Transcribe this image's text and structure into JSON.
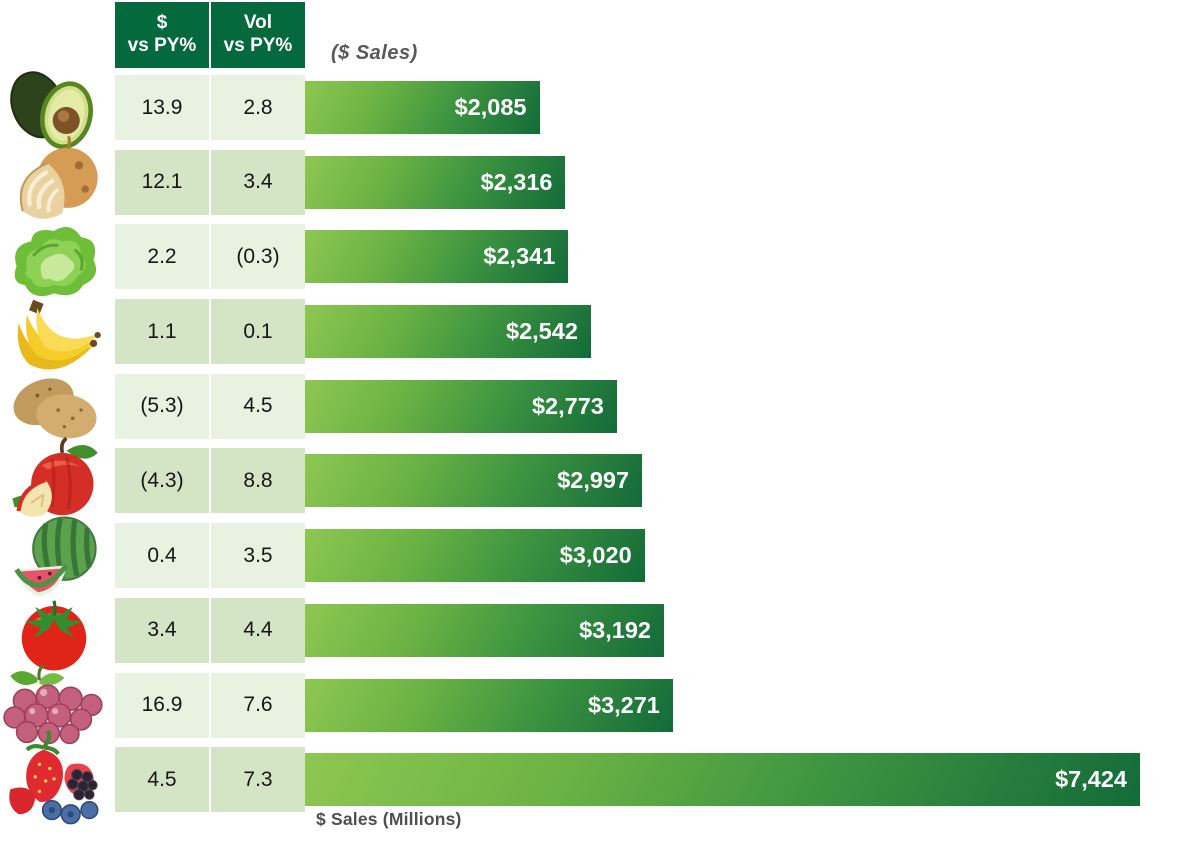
{
  "header": {
    "col1_line1": "$",
    "col1_line2": "vs PY%",
    "col2_line1": "Vol",
    "col2_line2": "vs PY%",
    "chart_label": "($ Sales)"
  },
  "footer": {
    "axis_label": "$ Sales (Millions)"
  },
  "colors": {
    "header_green": "#046a3e",
    "row_light": "#e9f1e0",
    "row_dark": "#d4e5c5",
    "bar_gradient_light": "#8ec751",
    "bar_gradient_dark": "#136b39",
    "bar_label_text": "#ffffff",
    "title_gray": "#58595b"
  },
  "rows": [
    {
      "icon": "avocado-icon",
      "dollar_vs_py": "13.9",
      "vol_vs_py": "2.8",
      "sales_label": "$2,085"
    },
    {
      "icon": "onion-icon",
      "dollar_vs_py": "12.1",
      "vol_vs_py": "3.4",
      "sales_label": "$2,316"
    },
    {
      "icon": "lettuce-icon",
      "dollar_vs_py": "2.2",
      "vol_vs_py": "(0.3)",
      "sales_label": "$2,341"
    },
    {
      "icon": "banana-icon",
      "dollar_vs_py": "1.1",
      "vol_vs_py": "0.1",
      "sales_label": "$2,542"
    },
    {
      "icon": "potato-icon",
      "dollar_vs_py": "(5.3)",
      "vol_vs_py": "4.5",
      "sales_label": "$2,773"
    },
    {
      "icon": "apple-icon",
      "dollar_vs_py": "(4.3)",
      "vol_vs_py": "8.8",
      "sales_label": "$2,997"
    },
    {
      "icon": "watermelon-icon",
      "dollar_vs_py": "0.4",
      "vol_vs_py": "3.5",
      "sales_label": "$3,020"
    },
    {
      "icon": "tomato-icon",
      "dollar_vs_py": "3.4",
      "vol_vs_py": "4.4",
      "sales_label": "$3,192"
    },
    {
      "icon": "grapes-icon",
      "dollar_vs_py": "16.9",
      "vol_vs_py": "7.6",
      "sales_label": "$3,271"
    },
    {
      "icon": "berries-icon",
      "dollar_vs_py": "4.5",
      "vol_vs_py": "7.3",
      "sales_label": "$7,424"
    }
  ],
  "chart_data": {
    "type": "bar",
    "orientation": "horizontal",
    "title": "($ Sales)",
    "xlabel": "$ Sales (Millions)",
    "xlim": [
      0,
      7424
    ],
    "grid": false,
    "legend": false,
    "categories": [
      "Avocado",
      "Onion",
      "Lettuce",
      "Banana",
      "Potato",
      "Apple",
      "Watermelon",
      "Tomato",
      "Grapes",
      "Berries"
    ],
    "series": [
      {
        "name": "$ Sales (Millions)",
        "values": [
          2085,
          2316,
          2341,
          2542,
          2773,
          2997,
          3020,
          3192,
          3271,
          7424
        ]
      },
      {
        "name": "$ vs PY%",
        "values": [
          13.9,
          12.1,
          2.2,
          1.1,
          -5.3,
          -4.3,
          0.4,
          3.4,
          16.9,
          4.5
        ]
      },
      {
        "name": "Vol vs PY%",
        "values": [
          2.8,
          3.4,
          -0.3,
          0.1,
          4.5,
          8.8,
          3.5,
          4.4,
          7.6,
          7.3
        ]
      }
    ],
    "value_labels": [
      "$2,085",
      "$2,316",
      "$2,341",
      "$2,542",
      "$2,773",
      "$2,997",
      "$3,020",
      "$3,192",
      "$3,271",
      "$7,424"
    ]
  }
}
